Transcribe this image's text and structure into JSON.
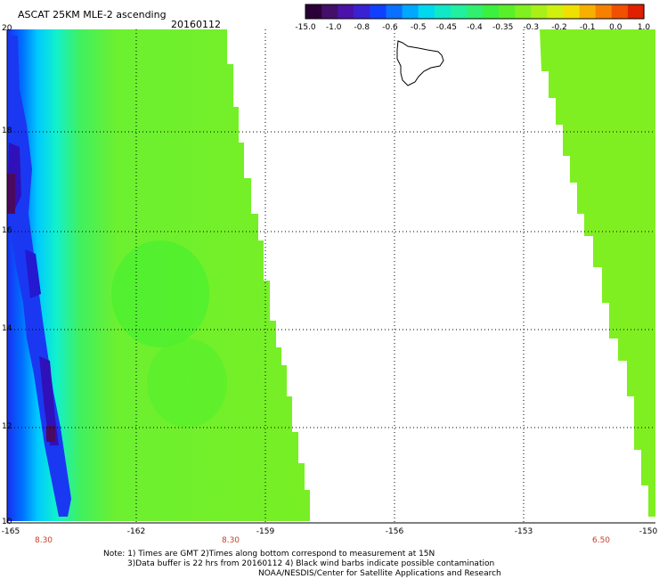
{
  "header": {
    "title": "ASCAT 25KM MLE-2 ascending",
    "date": "20160112"
  },
  "colorbar": {
    "labels": [
      "-15.0",
      "-1.0",
      "-0.8",
      "-0.6",
      "-0.5",
      "-0.45",
      "-0.4",
      "-0.35",
      "-0.3",
      "-0.2",
      "-0.1",
      "0.0",
      "1.0"
    ],
    "colors": [
      "#2a0038",
      "#440f6a",
      "#4a12a8",
      "#3a22d2",
      "#1040ff",
      "#0a70ff",
      "#00a8ff",
      "#00d8f0",
      "#10e8c8",
      "#20f0a0",
      "#30f070",
      "#3cf040",
      "#5af028",
      "#80f020",
      "#a8f018",
      "#d0f010",
      "#f0e000",
      "#f8b000",
      "#f88000",
      "#f05000",
      "#e02000"
    ]
  },
  "map": {
    "latitudes": [
      "20",
      "18",
      "16",
      "14",
      "12",
      "10"
    ],
    "longitudes": [
      "-165",
      "-162",
      "-159",
      "-156",
      "-153",
      "-150"
    ],
    "times": [
      "8.30",
      "8.30",
      "6.50"
    ],
    "colors": {
      "swath_green": "#77ef24",
      "swath_lime": "#90f020",
      "mid_green": "#3ef032",
      "cyan": "#16f0d8",
      "light_blue": "#00b0ff",
      "blue": "#1830f0",
      "dark_blue": "#3010b8",
      "purple": "#4a0a60",
      "coast": "#000000",
      "time_text": "#c4412b"
    }
  },
  "notes": {
    "line1": "Note: 1) Times are GMT 2)Times along bottom correspond to measurement at 15N",
    "line2": "3)Data buffer is 22 hrs from 20160112 4) Black wind barbs indicate possible contamination",
    "line3": "NOAA/NESDIS/Center for Satellite Applications and Research"
  }
}
